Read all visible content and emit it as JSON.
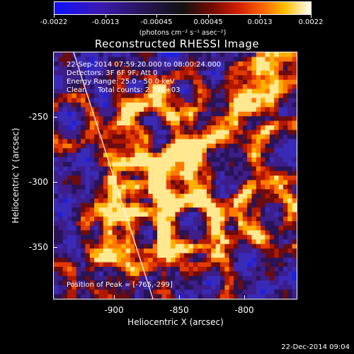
{
  "colorbar": {
    "tick_labels": [
      "-0.0022",
      "-0.0013",
      "-0.00045",
      "0.00045",
      "0.0013",
      "0.0022"
    ],
    "unit_label": "(photons cm⁻² s⁻¹ asec⁻²)",
    "range": [
      -0.0022,
      0.0022
    ]
  },
  "title": "Reconstructed RHESSI Image",
  "info": {
    "time_range": "22-Sep-2014 07:59:20.000 to 08:00:24.000",
    "detectors": "Detectors: 3F 6F 9F, Att 0",
    "energy_range": "Energy Range: 25.0 - 50.0 keV",
    "clean": "Clean     Total counts: 2.29E+03",
    "peak": "Position of Peak = [-765,-299]"
  },
  "axes": {
    "xlabel": "Heliocentric X (arcsec)",
    "ylabel": "Heliocentric Y (arcsec)",
    "x_ticks": [
      "-900",
      "-850",
      "-800"
    ],
    "y_ticks": [
      "-250",
      "-300",
      "-350"
    ]
  },
  "timestamp": "22-Dec-2014 09:04",
  "colors": {
    "background": "#000000",
    "text": "#ffffff",
    "limb_line": "#ffffff"
  }
}
